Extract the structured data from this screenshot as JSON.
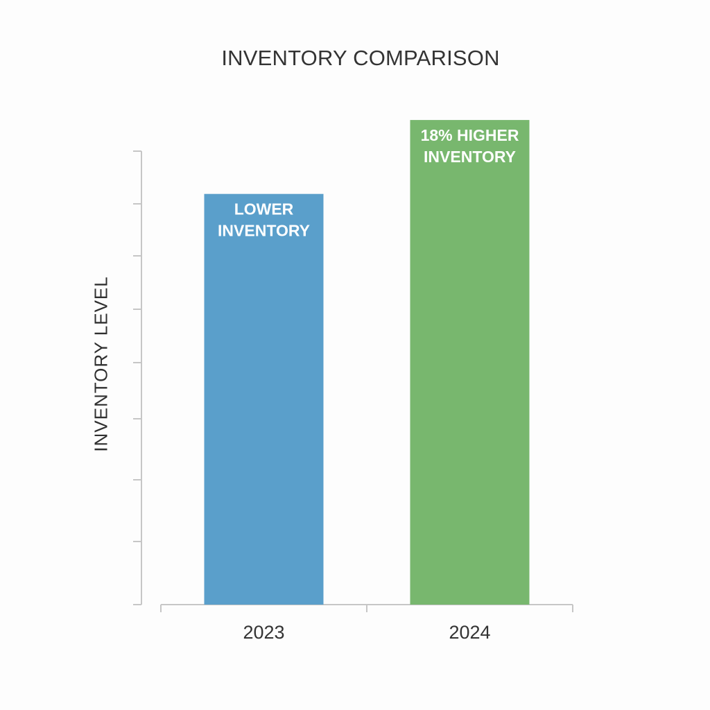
{
  "chart_data": {
    "type": "bar",
    "title": "INVENTORY COMPARISON",
    "xlabel": "",
    "ylabel": "INVENTORY LEVEL",
    "categories": [
      "2023",
      "2024"
    ],
    "values": [
      100,
      118
    ],
    "ylim": [
      0,
      130
    ],
    "y_tick_labels_shown": false,
    "grid": false,
    "bar_colors": [
      "#5a9fcb",
      "#78b76e"
    ],
    "bar_labels": [
      [
        "LOWER",
        "INVENTORY"
      ],
      [
        "18% HIGHER",
        "INVENTORY"
      ]
    ]
  }
}
